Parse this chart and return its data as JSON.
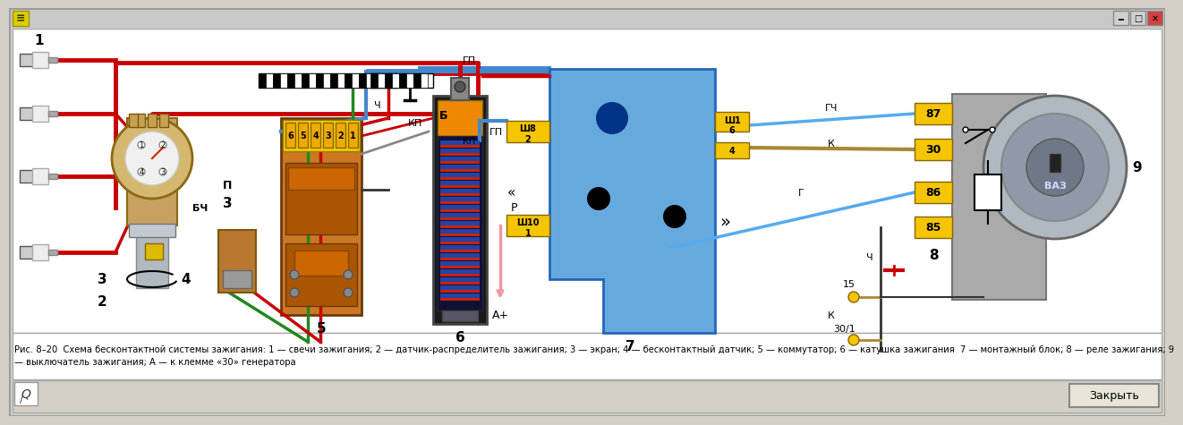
{
  "window_bg": "#d4d0c8",
  "diagram_bg": "#ffffff",
  "caption_line1": "Рис. 8–20  Схема бесконтактной системы зажигания: 1 — свечи зажигания; 2 — датчик-распределитель зажигания; 3 — экран; 4 — бесконтактный датчик; 5 — коммутатор; 6 — катушка зажигания  7 — монтажный блок; 8 — реле зажигания; 9",
  "caption_line2": "— выключатель зажигания; А — к клемме «30» генератора",
  "close_btn": "Закрыть",
  "color_red": "#c80000",
  "color_dark_red": "#8b0000",
  "color_blue": "#4488cc",
  "color_blue2": "#2266aa",
  "color_light_blue": "#66aadd",
  "color_sky_blue": "#55aaee",
  "color_green": "#228822",
  "color_yellow": "#f5c500",
  "color_brown": "#8b5a1a",
  "color_orange": "#cc7700",
  "color_tan": "#c8a060",
  "color_gray": "#aaaaaa",
  "color_dgray": "#666666",
  "color_black": "#111111",
  "color_pink": "#ee99aa",
  "color_white": "#ffffff",
  "color_coil_bg": "#1a1a2e",
  "color_coil_blue": "#3366bb",
  "color_coil_inner": "#cc2200"
}
